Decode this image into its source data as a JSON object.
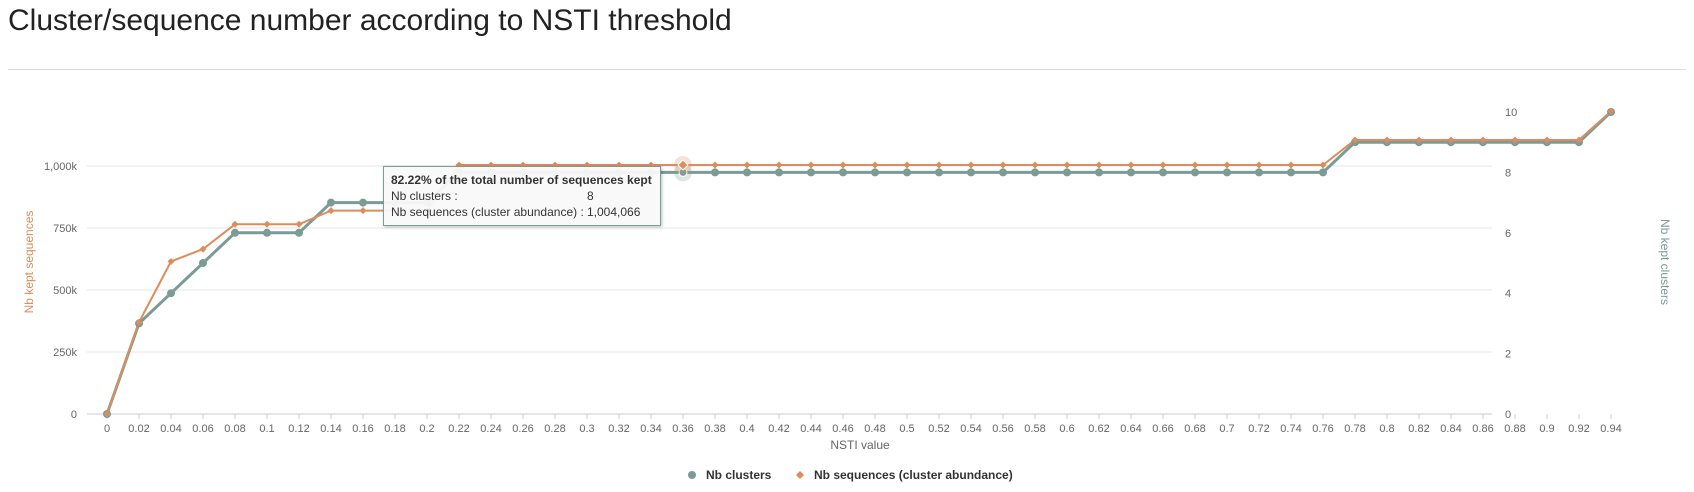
{
  "page": {
    "title": "Cluster/sequence number according to NSTI threshold"
  },
  "colors": {
    "clusters": "#7b9b97",
    "sequences": "#dc8d5d",
    "grid": "#e6e6e6",
    "axis_text": "#666666"
  },
  "chart_data": {
    "type": "line",
    "title": "",
    "xlabel": "NSTI value",
    "ylabel_left": "Nb kept sequences",
    "ylabel_right": "Nb kept clusters",
    "categories": [
      "0",
      "0.02",
      "0.04",
      "0.06",
      "0.08",
      "0.1",
      "0.12",
      "0.14",
      "0.16",
      "0.18",
      "0.2",
      "0.22",
      "0.24",
      "0.26",
      "0.28",
      "0.3",
      "0.32",
      "0.34",
      "0.36",
      "0.38",
      "0.4",
      "0.42",
      "0.44",
      "0.46",
      "0.48",
      "0.5",
      "0.52",
      "0.54",
      "0.56",
      "0.58",
      "0.6",
      "0.62",
      "0.64",
      "0.66",
      "0.68",
      "0.7",
      "0.72",
      "0.74",
      "0.76",
      "0.78",
      "0.8",
      "0.82",
      "0.84",
      "0.86",
      "0.88",
      "0.9",
      "0.92",
      "0.94"
    ],
    "y_left": {
      "min": 0,
      "max": 1000000,
      "ticks": [
        0,
        250000,
        500000,
        750000,
        1000000
      ],
      "tick_labels": [
        "0",
        "250k",
        "500k",
        "750k",
        "1,000k"
      ]
    },
    "y_right": {
      "min": 0,
      "max": 10,
      "ticks": [
        0,
        2,
        4,
        6,
        8,
        10
      ],
      "tick_labels": [
        "0",
        "2",
        "4",
        "6",
        "8",
        "10"
      ]
    },
    "series": [
      {
        "name": "Nb clusters",
        "axis": "right",
        "marker": "circle",
        "values": [
          0,
          3,
          4,
          5,
          6,
          6,
          6,
          7,
          7,
          7,
          7,
          8,
          8,
          8,
          8,
          8,
          8,
          8,
          8,
          8,
          8,
          8,
          8,
          8,
          8,
          8,
          8,
          8,
          8,
          8,
          8,
          8,
          8,
          8,
          8,
          8,
          8,
          8,
          8,
          9,
          9,
          9,
          9,
          9,
          9,
          9,
          9,
          10
        ]
      },
      {
        "name": "Nb sequences (cluster abundance)",
        "axis": "left",
        "marker": "diamond",
        "values": [
          0,
          370000,
          615000,
          665000,
          765000,
          765000,
          765000,
          820000,
          820000,
          820000,
          820000,
          1004066,
          1004066,
          1004066,
          1004066,
          1004066,
          1004066,
          1004066,
          1004066,
          1004066,
          1004066,
          1004066,
          1004066,
          1004066,
          1004066,
          1004066,
          1004066,
          1004066,
          1004066,
          1004066,
          1004066,
          1004066,
          1004066,
          1004066,
          1004066,
          1004066,
          1004066,
          1004066,
          1004066,
          1105000,
          1105000,
          1105000,
          1105000,
          1105000,
          1105000,
          1105000,
          1105000,
          1221000
        ]
      }
    ],
    "legend": {
      "position": "bottom-center"
    },
    "grid": true,
    "hover_index": 18
  },
  "tooltip": {
    "header": "82.22% of the total number of sequences kept",
    "row1_label": "Nb clusters :",
    "row1_value": "8",
    "row2_label": "Nb sequences (cluster abundance) :",
    "row2_value": "1,004,066"
  }
}
